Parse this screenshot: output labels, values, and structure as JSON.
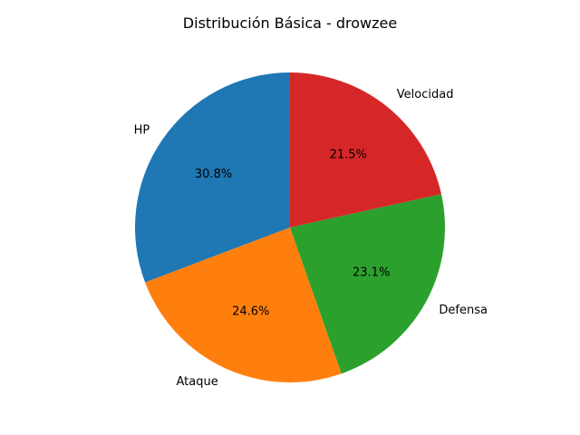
{
  "chart_data": {
    "type": "pie",
    "title": "Distribución Básica - drowzee",
    "categories": [
      "HP",
      "Ataque",
      "Defensa",
      "Velocidad"
    ],
    "values": [
      60,
      48,
      45,
      42
    ],
    "percent_labels": [
      "30.8%",
      "24.6%",
      "23.1%",
      "21.5%"
    ],
    "colors": [
      "#1f77b4",
      "#ff7f0e",
      "#2ca02c",
      "#d62728"
    ],
    "start_angle_deg": 90,
    "direction": "counterclockwise",
    "legend": "none"
  }
}
